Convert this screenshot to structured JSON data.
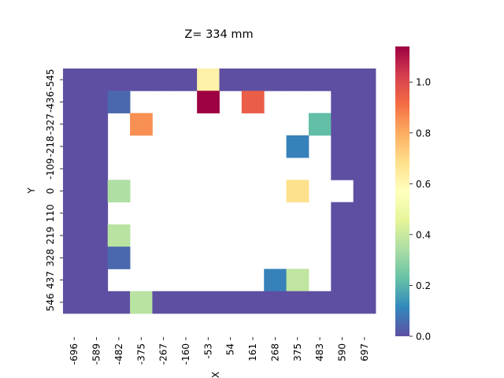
{
  "chart_data": {
    "type": "heatmap",
    "title": "Z= 334 mm",
    "xlabel": "X",
    "ylabel": "Y",
    "x_ticks": [
      "-696",
      "-589",
      "-482",
      "-375",
      "-267",
      "-160",
      "-53",
      "54",
      "161",
      "268",
      "375",
      "483",
      "590",
      "697"
    ],
    "y_ticks": [
      "-545",
      "-436",
      "-327",
      "-218",
      "-109",
      "0",
      "110",
      "219",
      "328",
      "437",
      "546"
    ],
    "colormap": "Spectral_r",
    "color_range": [
      0.0,
      1.14
    ],
    "colorbar_ticks": [
      "0.0",
      "0.2",
      "0.4",
      "0.6",
      "0.8",
      "1.0"
    ],
    "colorbar_tick_values": [
      0.0,
      0.2,
      0.4,
      0.6,
      0.8,
      1.0
    ],
    "grid": false,
    "legend": "colorbar right",
    "values": [
      [
        0,
        0,
        0,
        0,
        0,
        0,
        0.62,
        0,
        0,
        0,
        0,
        0,
        0,
        0
      ],
      [
        0,
        0,
        0.05,
        null,
        null,
        null,
        1.14,
        null,
        0.95,
        null,
        null,
        null,
        0,
        0
      ],
      [
        0,
        0,
        null,
        0.85,
        null,
        null,
        null,
        null,
        null,
        null,
        null,
        0.22,
        0,
        0
      ],
      [
        0,
        0,
        null,
        null,
        null,
        null,
        null,
        null,
        null,
        null,
        0.1,
        null,
        0,
        0
      ],
      [
        0,
        0,
        null,
        null,
        null,
        null,
        null,
        null,
        null,
        null,
        null,
        null,
        0,
        0
      ],
      [
        0,
        0,
        0.35,
        null,
        null,
        null,
        null,
        null,
        null,
        null,
        0.68,
        null,
        null,
        0
      ],
      [
        0,
        0,
        null,
        null,
        null,
        null,
        null,
        null,
        null,
        null,
        null,
        null,
        0,
        0
      ],
      [
        0,
        0,
        0.37,
        null,
        null,
        null,
        null,
        null,
        null,
        null,
        null,
        null,
        0,
        0
      ],
      [
        0,
        0,
        0.05,
        null,
        null,
        null,
        null,
        null,
        null,
        null,
        null,
        null,
        0,
        0
      ],
      [
        0,
        0,
        null,
        null,
        null,
        null,
        null,
        null,
        null,
        0.1,
        0.38,
        null,
        0,
        0
      ],
      [
        0,
        0,
        0,
        0.37,
        0,
        0,
        0,
        0,
        0,
        0,
        0,
        0,
        0,
        0
      ]
    ]
  }
}
